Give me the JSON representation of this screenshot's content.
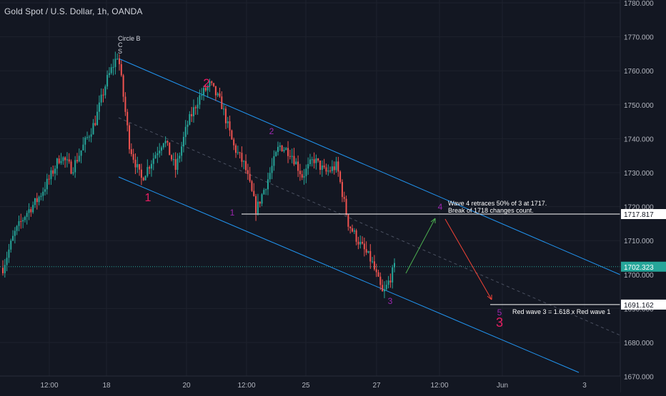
{
  "header": {
    "symbol_title": "Gold Spot / U.S. Dollar, 1h, OANDA"
  },
  "colors": {
    "background": "#131722",
    "grid": "#1e222d",
    "axis_text": "#b2b5be",
    "candle": "#26a69a",
    "candle_alt": "#ef5350",
    "channel": "#2196f3",
    "wave_red": "#e91e63",
    "wave_purple": "#9c27b0",
    "arrow_green": "#4caf50",
    "arrow_red": "#f44336",
    "current_price": "#26a69a",
    "line_white": "#ffffff"
  },
  "chart_data": {
    "type": "candlestick",
    "timeframe": "1h",
    "ylim": [
      1668,
      1783
    ],
    "y_ticks": [
      "1680.000",
      "1690.000",
      "1700.000",
      "1710.000",
      "1720.000",
      "1730.000",
      "1740.000",
      "1750.000",
      "1760.000",
      "1770.000",
      "1780.000"
    ],
    "y_tick_values": [
      1680,
      1690,
      1700,
      1710,
      1720,
      1730,
      1740,
      1750,
      1760,
      1770,
      1780
    ],
    "partial_tick": {
      "label": "1670.000",
      "value": 1670
    },
    "x_ticks": [
      "12:00",
      "18",
      "20",
      "12:00",
      "25",
      "27",
      "12:00",
      "Jun",
      "3"
    ],
    "grid": true,
    "price_path": [
      1702,
      1712,
      1718,
      1722,
      1728,
      1735,
      1731,
      1738,
      1745,
      1757,
      1765,
      1738,
      1728,
      1734,
      1740,
      1731,
      1744,
      1752,
      1756,
      1750,
      1738,
      1732,
      1719,
      1728,
      1738,
      1736,
      1729,
      1734,
      1730,
      1732,
      1715,
      1709,
      1704,
      1694,
      1702
    ],
    "price_labels": [
      {
        "label": "1717.817",
        "value": 1717.817
      },
      {
        "label": "1702.323",
        "value": 1702.323
      },
      {
        "label": "1691.162",
        "value": 1691.162
      }
    ],
    "current_price": {
      "label": "1702.323",
      "value": 1702.323
    },
    "horizontal_lines": [
      {
        "value": 1717.817,
        "label": "1717.817"
      },
      {
        "value": 1691.162,
        "label": "1691.162"
      }
    ],
    "wave_labels": [
      {
        "text": "1",
        "style": "red"
      },
      {
        "text": "2",
        "style": "red"
      },
      {
        "text": "1",
        "style": "purple"
      },
      {
        "text": "2",
        "style": "purple"
      },
      {
        "text": "3",
        "style": "purple"
      },
      {
        "text": "4",
        "style": "purple"
      },
      {
        "text": "5",
        "style": "purple"
      },
      {
        "text": "3",
        "style": "red"
      }
    ],
    "annotations": {
      "top": [
        "Circle B",
        "C",
        "S"
      ],
      "wave4_line1": "Wave 4 retraces 50% of 3 at 1717.",
      "wave4_line2": "Break of 1718 changes count.",
      "red_wave": "Red wave 3 = 1.618 x Red wave 1"
    }
  }
}
